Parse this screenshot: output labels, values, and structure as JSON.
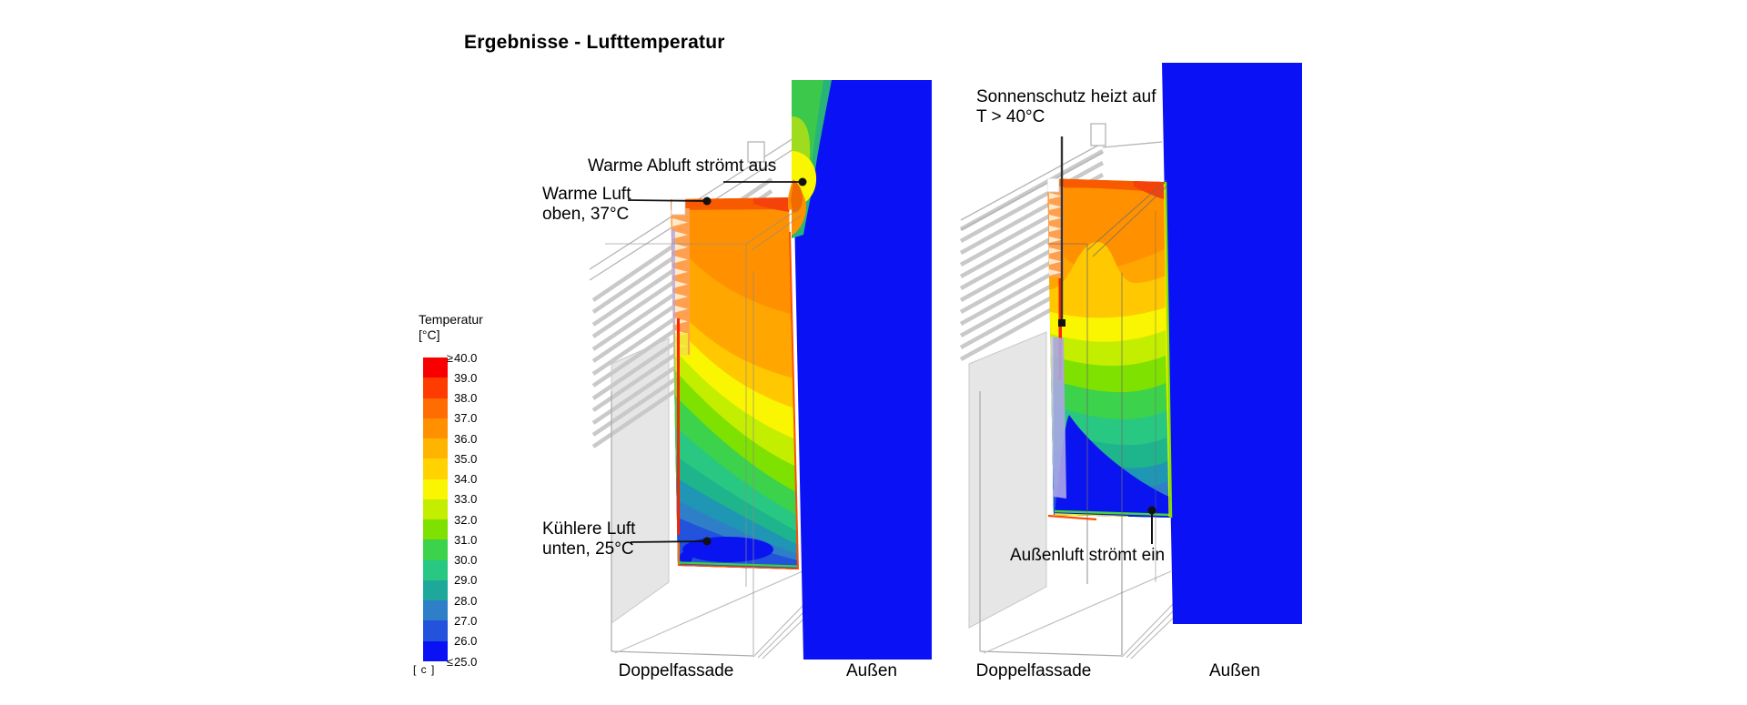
{
  "title": "Ergebnisse - Lufttemperatur",
  "legend": {
    "title_line1": "Temperatur",
    "title_line2": "[°C]",
    "footer": "[ c ]",
    "entries": [
      {
        "prefix": "≥",
        "value": "40.0"
      },
      {
        "prefix": "",
        "value": "39.0"
      },
      {
        "prefix": "",
        "value": "38.0"
      },
      {
        "prefix": "",
        "value": "37.0"
      },
      {
        "prefix": "",
        "value": "36.0"
      },
      {
        "prefix": "",
        "value": "35.0"
      },
      {
        "prefix": "",
        "value": "34.0"
      },
      {
        "prefix": "",
        "value": "33.0"
      },
      {
        "prefix": "",
        "value": "32.0"
      },
      {
        "prefix": "",
        "value": "31.0"
      },
      {
        "prefix": "",
        "value": "30.0"
      },
      {
        "prefix": "",
        "value": "29.0"
      },
      {
        "prefix": "",
        "value": "28.0"
      },
      {
        "prefix": "",
        "value": "27.0"
      },
      {
        "prefix": "",
        "value": "26.0"
      },
      {
        "prefix": "≤",
        "value": "25.0"
      }
    ],
    "band_colors": [
      "#F80000",
      "#FF3C00",
      "#FF6C00",
      "#FF9100",
      "#FFB400",
      "#FFD200",
      "#FAF500",
      "#C3EE00",
      "#7FE100",
      "#3CD24B",
      "#28C882",
      "#1EA89B",
      "#2E7FC8",
      "#2352DC",
      "#0A12F5"
    ]
  },
  "annotations": {
    "outflow": "Warme Abluft strömt aus",
    "warm_top": {
      "line1": "Warme Luft",
      "line2": "oben, 37°C"
    },
    "cool_bottom": {
      "line1": "Kühlere Luft",
      "line2": "unten, 25°C"
    },
    "sunshade": {
      "line1": "Sonnenschutz heizt auf",
      "line2": "T > 40°C"
    },
    "inflow": "Außenluft strömt ein"
  },
  "captions": {
    "left_cavity": "Doppelfassade",
    "left_outside": "Außen",
    "right_cavity": "Doppelfassade",
    "right_outside": "Außen"
  },
  "colors": {
    "outside_blue": "#0A12F5",
    "top_edge_orange": "#F85A00",
    "hot_corner": "#F4420A",
    "light_orange": "#FFA600",
    "amber": "#FFC800",
    "emerald": "#1EB48C",
    "teal": "#1E96B4",
    "royal_blue": "#0A14F0",
    "red_strip": "#FF2300",
    "lavender": "#ABA6E6",
    "plume_teal": "#28B478",
    "plume_green": "#3CC84B",
    "plume_yellowgreen": "#A0DC1E",
    "plume_orange": "#FF9000",
    "plume_core": "#F06A00",
    "louver_base": "#FFA050",
    "louver_tooth": "#FFE9C8"
  }
}
